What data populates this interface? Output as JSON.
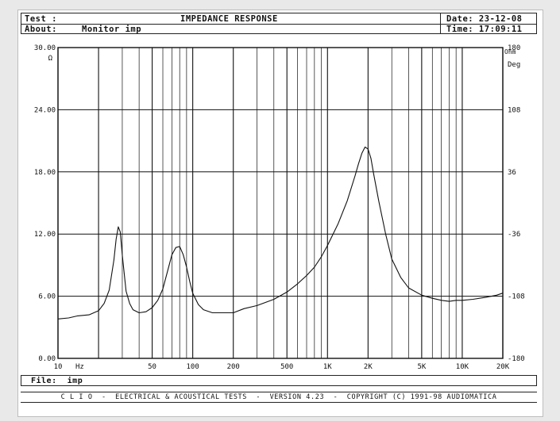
{
  "header": {
    "test_label": "Test :",
    "title": "IMPEDANCE RESPONSE",
    "date_label": "Date: 23-12-08",
    "about_label": "About:",
    "about_value": "Monitor imp",
    "time_label": "Time: 17:09:11"
  },
  "footer": {
    "file_label": "File:",
    "file_value": "imp",
    "credits": "C L I O  -  ELECTRICAL & ACOUSTICAL TESTS  -  VERSION 4.23  -  COPYRIGHT (C) 1991-98 AUDIOMATICA"
  },
  "chart_data": {
    "type": "line",
    "title": "IMPEDANCE RESPONSE",
    "x_scale": "log",
    "xlim": [
      10,
      20000
    ],
    "x_ticks": [
      10,
      50,
      100,
      200,
      500,
      1000,
      2000,
      5000,
      10000,
      20000
    ],
    "x_tick_labels": [
      "10",
      "50",
      "100",
      "200",
      "500",
      "1K",
      "2K",
      "5K",
      "10K",
      "20K"
    ],
    "x_unit": "Hz",
    "ylim": [
      0,
      30
    ],
    "y_ticks": [
      0,
      6,
      12,
      18,
      24,
      30
    ],
    "y_tick_labels": [
      "0.00",
      "6.00",
      "12.00",
      "18.00",
      "24.00",
      "30.00"
    ],
    "y_unit": "Ω",
    "y2_unit": "Ohm",
    "y2_name": "Deg",
    "y2_ticks": [
      -180,
      -108,
      -36,
      36,
      108,
      180
    ],
    "y2_tick_labels": [
      "-180",
      "-108",
      "-36",
      "36",
      "108",
      "180"
    ],
    "grid": true,
    "series": [
      {
        "x": [
          10,
          12,
          14,
          17,
          20,
          22,
          24,
          26,
          27,
          28,
          29,
          30,
          32,
          34,
          36,
          40,
          45,
          50,
          55,
          60,
          65,
          70,
          75,
          80,
          85,
          90,
          95,
          100,
          110,
          120,
          140,
          160,
          200,
          240,
          300,
          400,
          500,
          600,
          700,
          800,
          900,
          1000,
          1200,
          1400,
          1600,
          1700,
          1800,
          1900,
          2000,
          2100,
          2200,
          2400,
          2700,
          3000,
          3500,
          4000,
          5000,
          6000,
          7000,
          8000,
          9000,
          10000,
          12000,
          15000,
          18000,
          20000
        ],
        "y": [
          3.8,
          3.9,
          4.1,
          4.2,
          4.6,
          5.3,
          6.6,
          9.5,
          11.5,
          12.7,
          12.2,
          10.0,
          6.5,
          5.3,
          4.7,
          4.4,
          4.5,
          4.9,
          5.6,
          6.7,
          8.4,
          10.0,
          10.7,
          10.8,
          10.0,
          8.8,
          7.4,
          6.3,
          5.2,
          4.7,
          4.4,
          4.4,
          4.4,
          4.8,
          5.1,
          5.7,
          6.4,
          7.2,
          8.0,
          8.8,
          9.8,
          10.9,
          13.0,
          15.2,
          17.6,
          18.8,
          19.8,
          20.4,
          20.2,
          19.3,
          17.8,
          15.2,
          12.0,
          9.6,
          7.8,
          6.8,
          6.1,
          5.8,
          5.6,
          5.5,
          5.6,
          5.6,
          5.7,
          5.9,
          6.1,
          6.3
        ]
      }
    ]
  }
}
